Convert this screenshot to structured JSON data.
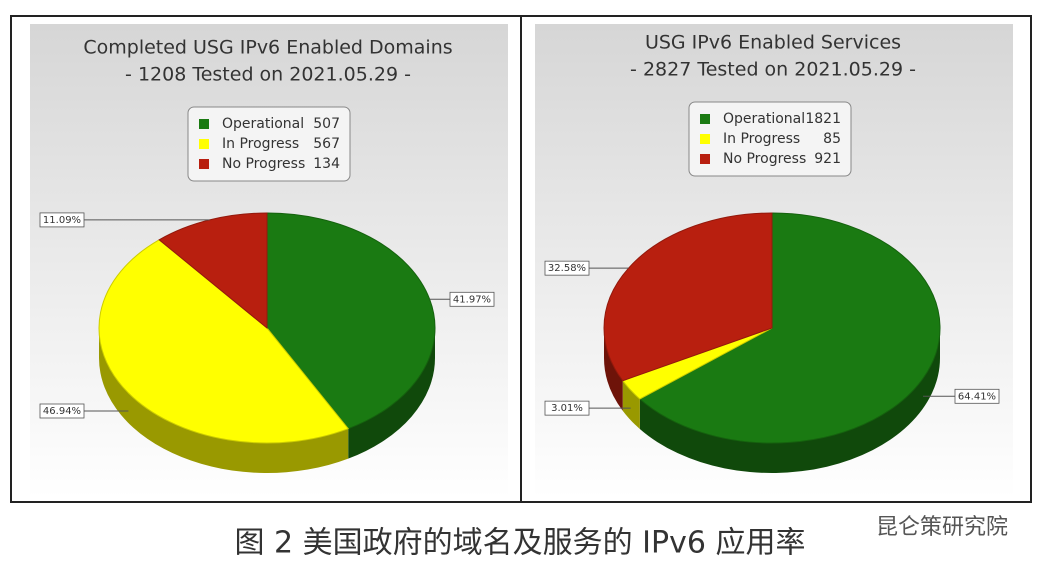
{
  "chart_data": [
    {
      "type": "pie",
      "title": "Completed USG IPv6 Enabled Domains",
      "subtitle": "- 1208 Tested on 2021.05.29 -",
      "categories": [
        "Operational",
        "In Progress",
        "No Progress"
      ],
      "counts": [
        507,
        567,
        134
      ],
      "values": [
        41.97,
        46.94,
        11.09
      ],
      "value_labels": [
        "41.97%",
        "46.94%",
        "11.09%"
      ],
      "colors": [
        "#1a7a12",
        "#ffff00",
        "#b81f0f"
      ]
    },
    {
      "type": "pie",
      "title": "USG IPv6 Enabled Services",
      "subtitle": "- 2827 Tested on 2021.05.29 -",
      "categories": [
        "Operational",
        "In Progress",
        "No Progress"
      ],
      "counts": [
        1821,
        85,
        921
      ],
      "values": [
        64.41,
        3.01,
        32.58
      ],
      "value_labels": [
        "64.41%",
        "3.01%",
        "32.58%"
      ],
      "colors": [
        "#1a7a12",
        "#ffff00",
        "#b81f0f"
      ]
    }
  ],
  "caption": "图 2 美国政府的域名及服务的 IPv6 应用率",
  "watermark": "昆仑策研究院"
}
